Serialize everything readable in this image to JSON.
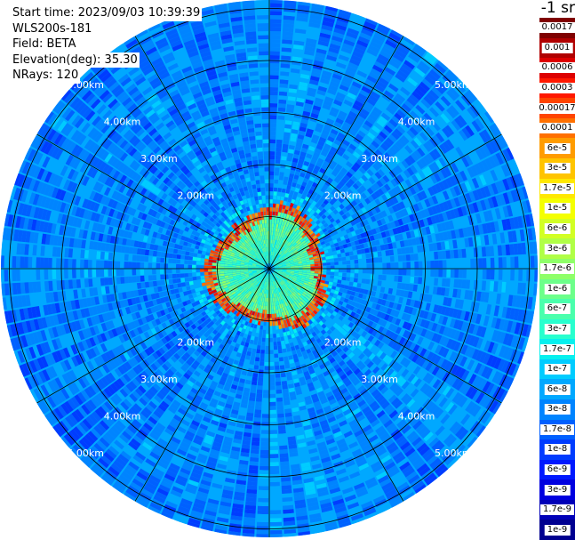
{
  "info": {
    "start_time": "Start time: 2023/09/03 10:39:39",
    "instrument": "WLS200s-181",
    "field": "Field: BETA",
    "elevation": "Elevation(deg): 35.30",
    "nrays": "NRays: 120"
  },
  "colorbar": {
    "unit": "-1 sr",
    "levels": [
      {
        "label": "0.0017",
        "color": "#7f0000"
      },
      {
        "label": "0.001",
        "color": "#b00000"
      },
      {
        "label": "0.0006",
        "color": "#dd0000"
      },
      {
        "label": "0.0003",
        "color": "#ff1800"
      },
      {
        "label": "0.00017",
        "color": "#ff4400"
      },
      {
        "label": "0.0001",
        "color": "#ff7000"
      },
      {
        "label": "6e-5",
        "color": "#ff9c00"
      },
      {
        "label": "3e-5",
        "color": "#ffc400"
      },
      {
        "label": "1.7e-5",
        "color": "#ffe800"
      },
      {
        "label": "1e-5",
        "color": "#f4ff00"
      },
      {
        "label": "6e-6",
        "color": "#d2ff24"
      },
      {
        "label": "3e-6",
        "color": "#b0ff46"
      },
      {
        "label": "1.7e-6",
        "color": "#8eff68"
      },
      {
        "label": "1e-6",
        "color": "#6cff8a"
      },
      {
        "label": "6e-7",
        "color": "#4affac"
      },
      {
        "label": "3e-7",
        "color": "#28ffce"
      },
      {
        "label": "1.7e-7",
        "color": "#06f0ee"
      },
      {
        "label": "1e-7",
        "color": "#00ccff"
      },
      {
        "label": "6e-8",
        "color": "#00a8ff"
      },
      {
        "label": "3e-8",
        "color": "#0084ff"
      },
      {
        "label": "1.7e-8",
        "color": "#0060ff"
      },
      {
        "label": "1e-8",
        "color": "#003cff"
      },
      {
        "label": "6e-9",
        "color": "#0018ff"
      },
      {
        "label": "3e-9",
        "color": "#0000e0"
      },
      {
        "label": "1.7e-9",
        "color": "#0000b8"
      },
      {
        "label": "1e-9",
        "color": "#000090"
      }
    ]
  },
  "chart_data": {
    "type": "heatmap",
    "subtype": "polar PPI scan",
    "field": "BETA",
    "rays": 120,
    "range_rings_km": [
      1,
      2,
      3,
      4,
      5
    ],
    "range_labels": [
      "2.00km",
      "3.00km",
      "4.00km",
      "5.00km"
    ],
    "radial_spokes": 12,
    "max_range_km": 5.5,
    "ring_feature": {
      "approx_range_km": 1.0,
      "peak_beta_label": "0.001",
      "inner_beta_label": "1e-6",
      "outer_beta_label": "3e-8"
    },
    "colorscale": "log, 1e-9 to 0.0017 sr-1"
  }
}
